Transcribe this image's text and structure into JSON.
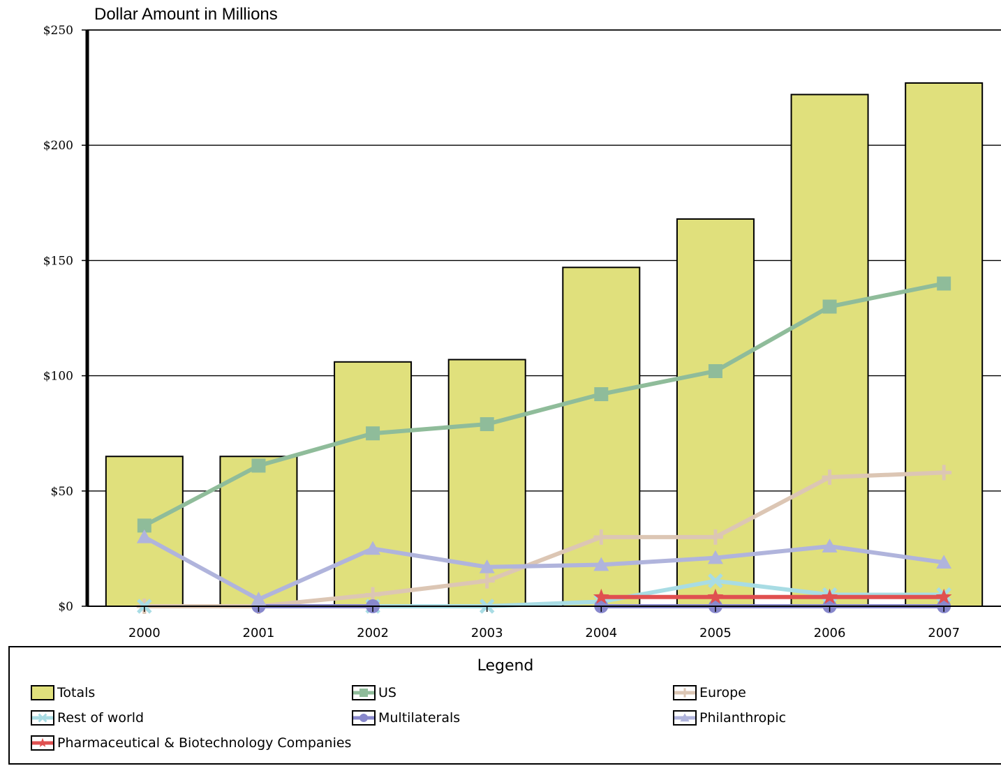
{
  "chart_data": {
    "type": "bar",
    "title": "Dollar Amount in Millions",
    "categories": [
      "2000",
      "2001",
      "2002",
      "2003",
      "2004",
      "2005",
      "2006",
      "2007"
    ],
    "ylim": [
      0,
      250
    ],
    "yticks": [
      0,
      50,
      100,
      150,
      200,
      250
    ],
    "ytick_labels": [
      "$0",
      "$50",
      "$100",
      "$150",
      "$200",
      "$250"
    ],
    "grid": true,
    "legend_position": "bottom",
    "series": [
      {
        "name": "Totals",
        "kind": "bar",
        "color": "#e0e07c",
        "marker": "none",
        "values": [
          65,
          65,
          106,
          107,
          147,
          168,
          222,
          227
        ]
      },
      {
        "name": "US",
        "kind": "line",
        "color": "#8fbc9a",
        "marker": "square",
        "values": [
          35,
          61,
          75,
          79,
          92,
          102,
          130,
          140
        ]
      },
      {
        "name": "Europe",
        "kind": "line",
        "color": "#dcc6b4",
        "marker": "plus",
        "values": [
          0,
          0,
          5,
          11,
          30,
          30,
          56,
          58
        ]
      },
      {
        "name": "Rest of world",
        "kind": "line",
        "color": "#a8dce4",
        "marker": "x",
        "values": [
          0,
          null,
          0,
          0,
          2,
          11,
          5,
          5
        ]
      },
      {
        "name": "Multilaterals",
        "kind": "line",
        "color": "#8888cc",
        "marker": "circle",
        "values": [
          null,
          0,
          0,
          null,
          0,
          0,
          0,
          0
        ]
      },
      {
        "name": "Philanthropic",
        "kind": "line",
        "color": "#b0b4dc",
        "marker": "triangle",
        "values": [
          30,
          3,
          25,
          17,
          18,
          21,
          26,
          19
        ]
      },
      {
        "name": "Pharmaceutical & Biotechnology Companies",
        "kind": "line",
        "color": "#e05050",
        "marker": "star",
        "values": [
          null,
          null,
          null,
          null,
          4,
          4,
          4,
          4
        ]
      }
    ]
  },
  "legend": {
    "title": "Legend"
  }
}
